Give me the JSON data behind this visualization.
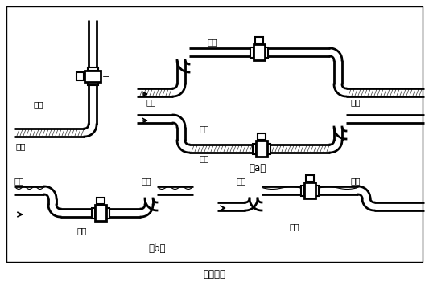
{
  "title": "图（四）",
  "label_a": "（a）",
  "label_b": "（b）",
  "labels": {
    "correct1": "正确",
    "liquid_left": "液体",
    "correct2": "正确",
    "liquid2": "液体",
    "liquid3": "液体",
    "error1": "错误",
    "liquid_err": "液体",
    "bubble1a": "气泡",
    "bubble1b": "气泡",
    "correct3": "正确",
    "bubble2a": "气泡",
    "bubble2b": "气泡",
    "bubble3a": "气泡",
    "bubble3b": "气泡",
    "error2": "错误"
  }
}
